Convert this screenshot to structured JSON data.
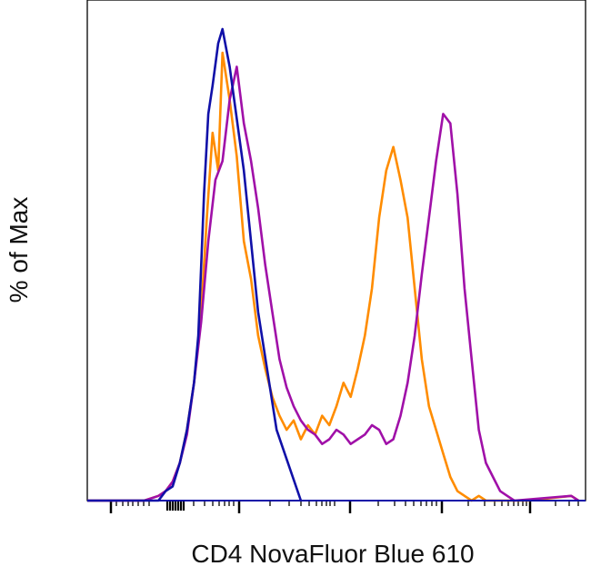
{
  "chart_data": {
    "type": "line",
    "title": "",
    "xlabel": "CD4 NovaFluor Blue 610",
    "ylabel": "% of Max",
    "x_scale": "log",
    "x_tick_labels": [],
    "y_tick_labels": [],
    "ylim": [
      0,
      100
    ],
    "legend": "none",
    "grid": false,
    "series": [
      {
        "color": "#1010a8",
        "x": [
          0,
          40,
          50,
          55,
          60,
          65,
          70,
          75,
          78,
          80,
          82,
          85,
          88,
          92,
          95,
          100,
          110,
          120,
          133,
          150
        ],
        "y": [
          0,
          0,
          0,
          2,
          3,
          8,
          15,
          25,
          35,
          50,
          65,
          82,
          88,
          97,
          100,
          92,
          70,
          40,
          15,
          0
        ]
      },
      {
        "color": "#ff8c00",
        "x": [
          0,
          40,
          50,
          55,
          60,
          65,
          70,
          75,
          80,
          84,
          88,
          92,
          95,
          100,
          105,
          110,
          115,
          120,
          125,
          130,
          135,
          140,
          145,
          150,
          155,
          160,
          165,
          170,
          175,
          180,
          185,
          190,
          195,
          200,
          205,
          210,
          215,
          220,
          225,
          230,
          235,
          240,
          245,
          250,
          255,
          260,
          265,
          270,
          275,
          280,
          285,
          290,
          295,
          300,
          310,
          340,
          345
        ],
        "y": [
          0,
          0,
          1,
          2,
          4,
          8,
          15,
          25,
          40,
          60,
          78,
          70,
          95,
          85,
          73,
          55,
          47,
          35,
          28,
          22,
          18,
          15,
          17,
          13,
          16,
          14,
          18,
          16,
          20,
          25,
          22,
          28,
          35,
          45,
          60,
          70,
          75,
          68,
          60,
          45,
          30,
          20,
          15,
          10,
          5,
          2,
          1,
          0,
          1,
          0,
          0,
          0,
          0,
          0,
          0,
          1,
          0
        ]
      },
      {
        "color": "#a010a8",
        "x": [
          0,
          40,
          50,
          55,
          60,
          65,
          70,
          75,
          80,
          85,
          90,
          95,
          100,
          105,
          110,
          115,
          120,
          125,
          130,
          135,
          140,
          145,
          150,
          155,
          160,
          165,
          170,
          175,
          180,
          185,
          190,
          195,
          200,
          205,
          210,
          215,
          220,
          225,
          230,
          235,
          240,
          245,
          250,
          255,
          260,
          265,
          270,
          275,
          280,
          285,
          290,
          295,
          300,
          340,
          345
        ],
        "y": [
          0,
          0,
          1,
          2,
          4,
          8,
          14,
          25,
          38,
          55,
          68,
          72,
          85,
          92,
          80,
          72,
          62,
          50,
          40,
          30,
          24,
          20,
          17,
          15,
          14,
          12,
          13,
          15,
          14,
          12,
          13,
          14,
          16,
          15,
          12,
          13,
          18,
          25,
          35,
          48,
          60,
          72,
          82,
          80,
          65,
          45,
          30,
          15,
          8,
          5,
          2,
          1,
          0,
          1,
          0
        ]
      }
    ]
  }
}
